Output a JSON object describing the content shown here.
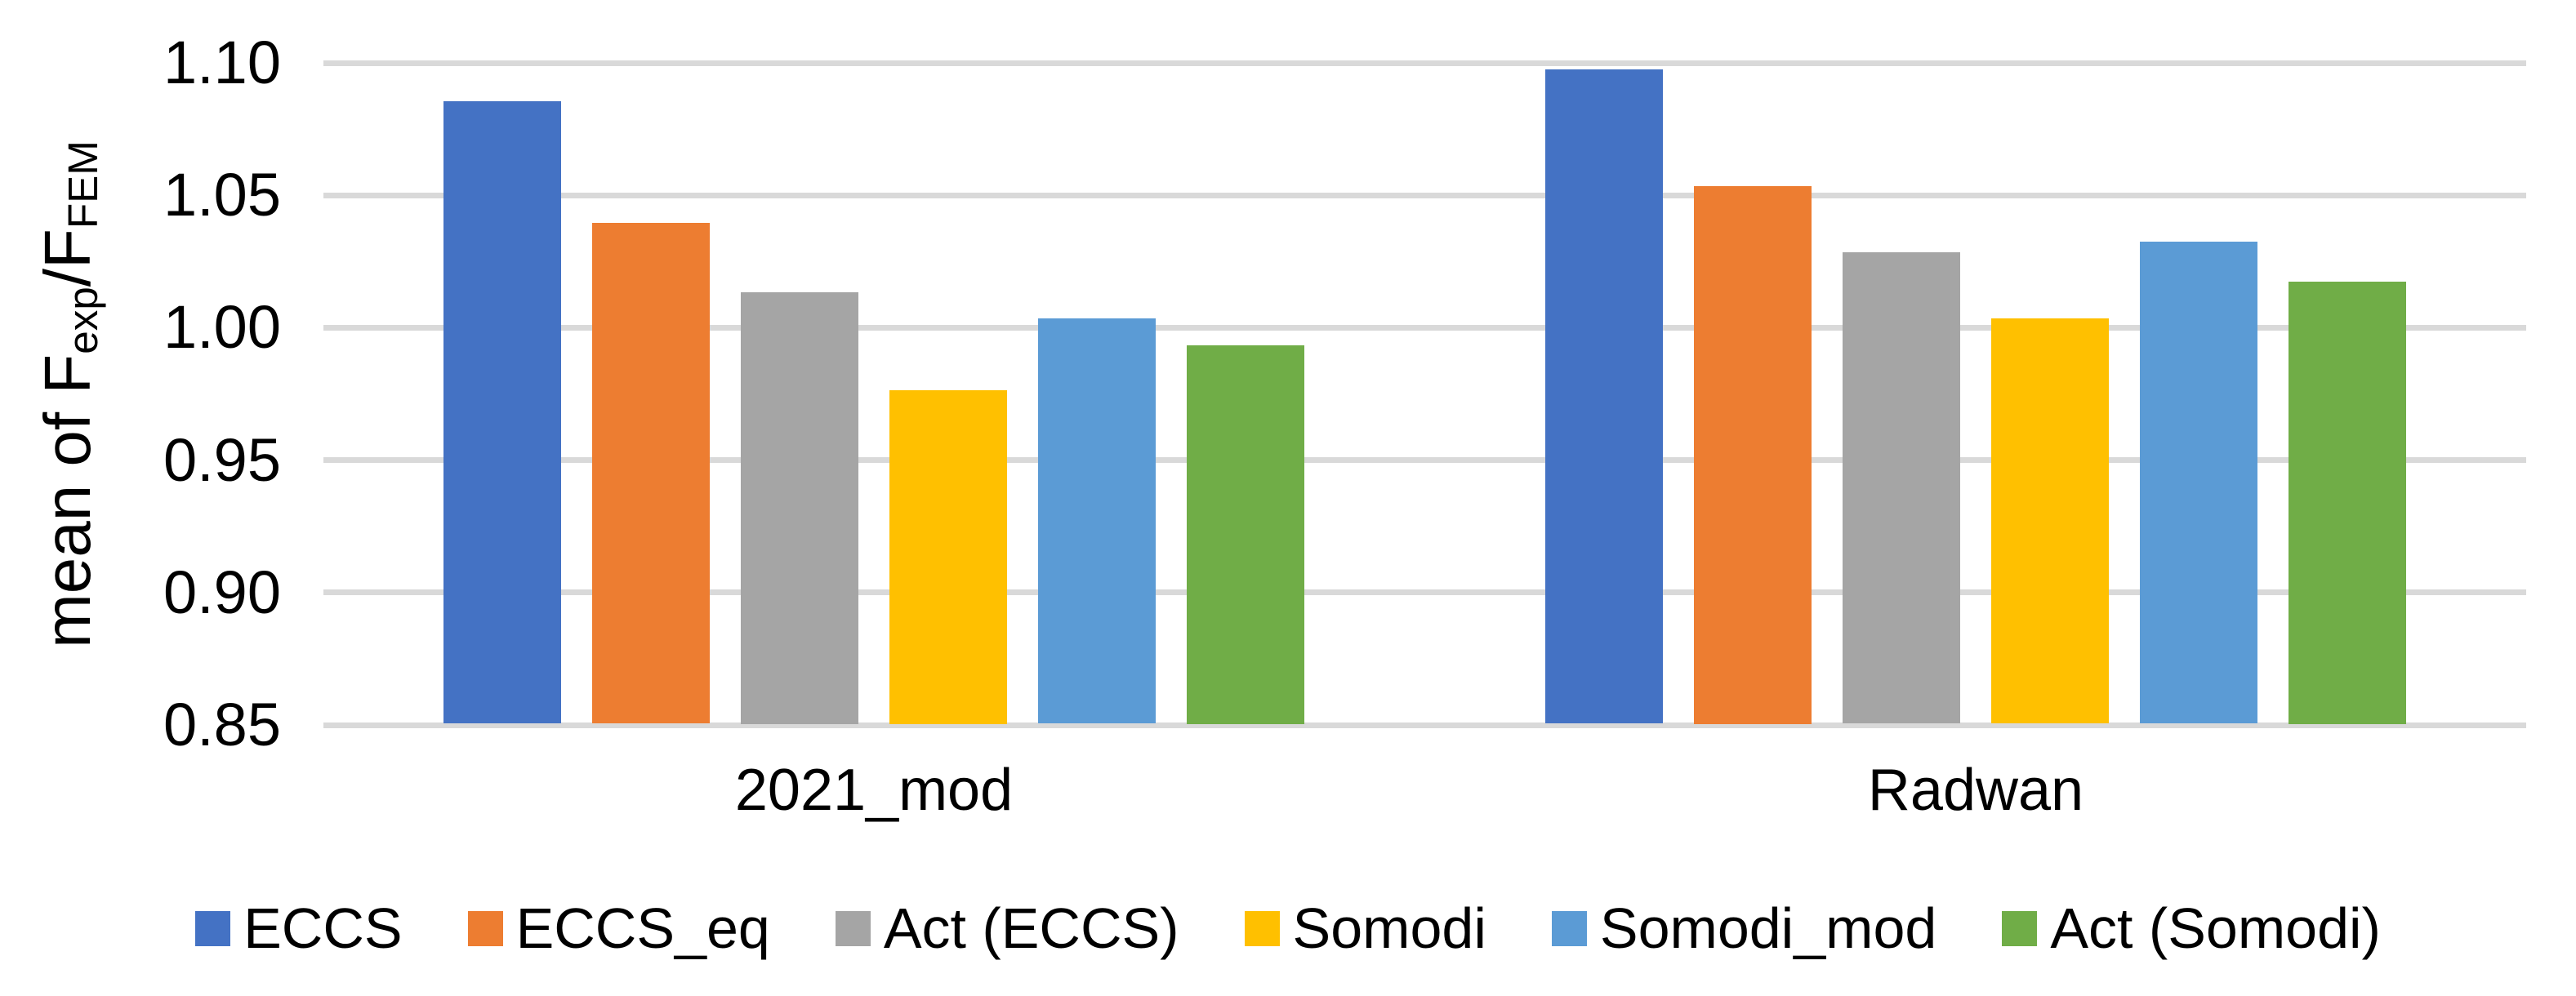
{
  "chart_data": {
    "type": "bar",
    "title": "",
    "categories": [
      "2021_mod",
      "Radwan"
    ],
    "series": [
      {
        "name": "ECCS",
        "color": "#4472C4",
        "values": [
          1.085,
          1.097
        ]
      },
      {
        "name": "ECCS_eq",
        "color": "#ED7D31",
        "values": [
          1.039,
          1.053
        ]
      },
      {
        "name": "Act (ECCS)",
        "color": "#A5A5A5",
        "values": [
          1.013,
          1.028
        ]
      },
      {
        "name": "Somodi",
        "color": "#FFC000",
        "values": [
          0.976,
          1.003
        ]
      },
      {
        "name": "Somodi_mod",
        "color": "#5B9BD5",
        "values": [
          1.003,
          1.032
        ]
      },
      {
        "name": "Act (Somodi)",
        "color": "#70AD47",
        "values": [
          0.993,
          1.017
        ]
      }
    ],
    "xlabel": "",
    "ylabel": "mean of F_exp/F_FEM",
    "ylabel_parts": {
      "prefix": "mean of F",
      "sub1": "exp",
      "mid": "/F",
      "sub2": "FEM"
    },
    "yticks": [
      "1.10",
      "1.05",
      "1.00",
      "0.95",
      "0.90",
      "0.85"
    ],
    "ylim": [
      0.85,
      1.1
    ],
    "grid": true,
    "gridline_color": "#D9D9D9",
    "text_color": "#000000",
    "legend_position": "bottom"
  }
}
